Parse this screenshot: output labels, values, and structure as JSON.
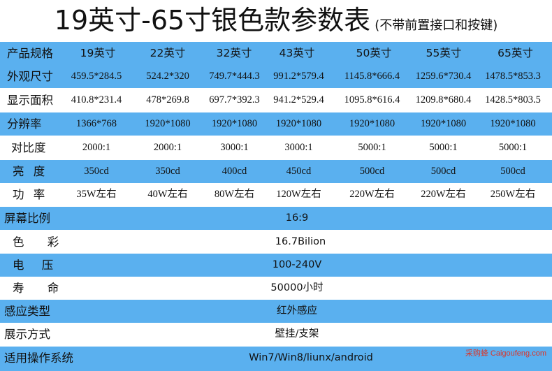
{
  "title": {
    "main": "19英寸-65寸银色款参数表",
    "sub": "(不带前置接口和按键)"
  },
  "header_row": {
    "label": "产品规格",
    "columns": [
      "19英寸",
      "22英寸",
      "32英寸",
      "43英寸",
      "50英寸",
      "55英寸",
      "65英寸"
    ]
  },
  "rows": [
    {
      "label": "外观尺寸",
      "values": [
        "459.5*284.5",
        "524.2*320",
        "749.7*444.3",
        "991.2*579.4",
        "1145.8*666.4",
        "1259.6*730.4",
        "1478.5*853.3"
      ]
    },
    {
      "label": "显示面积",
      "values": [
        "410.8*231.4",
        "478*269.8",
        "697.7*392.3",
        "941.2*529.4",
        "1095.8*616.4",
        "1209.8*680.4",
        "1428.5*803.5"
      ]
    },
    {
      "label": "分辨率",
      "values": [
        "1366*768",
        "1920*1080",
        "1920*1080",
        "1920*1080",
        "1920*1080",
        "1920*1080",
        "1920*1080"
      ]
    },
    {
      "label": "对比度",
      "values": [
        "2000:1",
        "2000:1",
        "3000:1",
        "3000:1",
        "5000:1",
        "5000:1",
        "5000:1"
      ]
    },
    {
      "label": "亮 度",
      "values": [
        "350cd",
        "350cd",
        "400cd",
        "450cd",
        "500cd",
        "500cd",
        "500cd"
      ]
    },
    {
      "label": "功 率",
      "values": [
        "35W左右",
        "40W左右",
        "80W左右",
        "120W左右",
        "220W左右",
        "220W左右",
        "250W左右"
      ]
    }
  ],
  "span_rows": [
    {
      "label": "屏幕比例",
      "value": "16:9"
    },
    {
      "label": "色 彩",
      "value": "16.7Bilion"
    },
    {
      "label": "电 压",
      "value": "100-240V"
    },
    {
      "label": "寿 命",
      "value": "50000小时"
    },
    {
      "label": "感应类型",
      "value": "红外感应"
    },
    {
      "label": "展示方式",
      "value": "壁挂/支架"
    },
    {
      "label": "适用操作系统",
      "value": "Win7/Win8/liunx/android"
    }
  ],
  "watermark": "采购蜂 Caigoufeng.com",
  "colors": {
    "band": "#5ab0ef",
    "text": "#111111",
    "watermark": "#d9362b"
  }
}
